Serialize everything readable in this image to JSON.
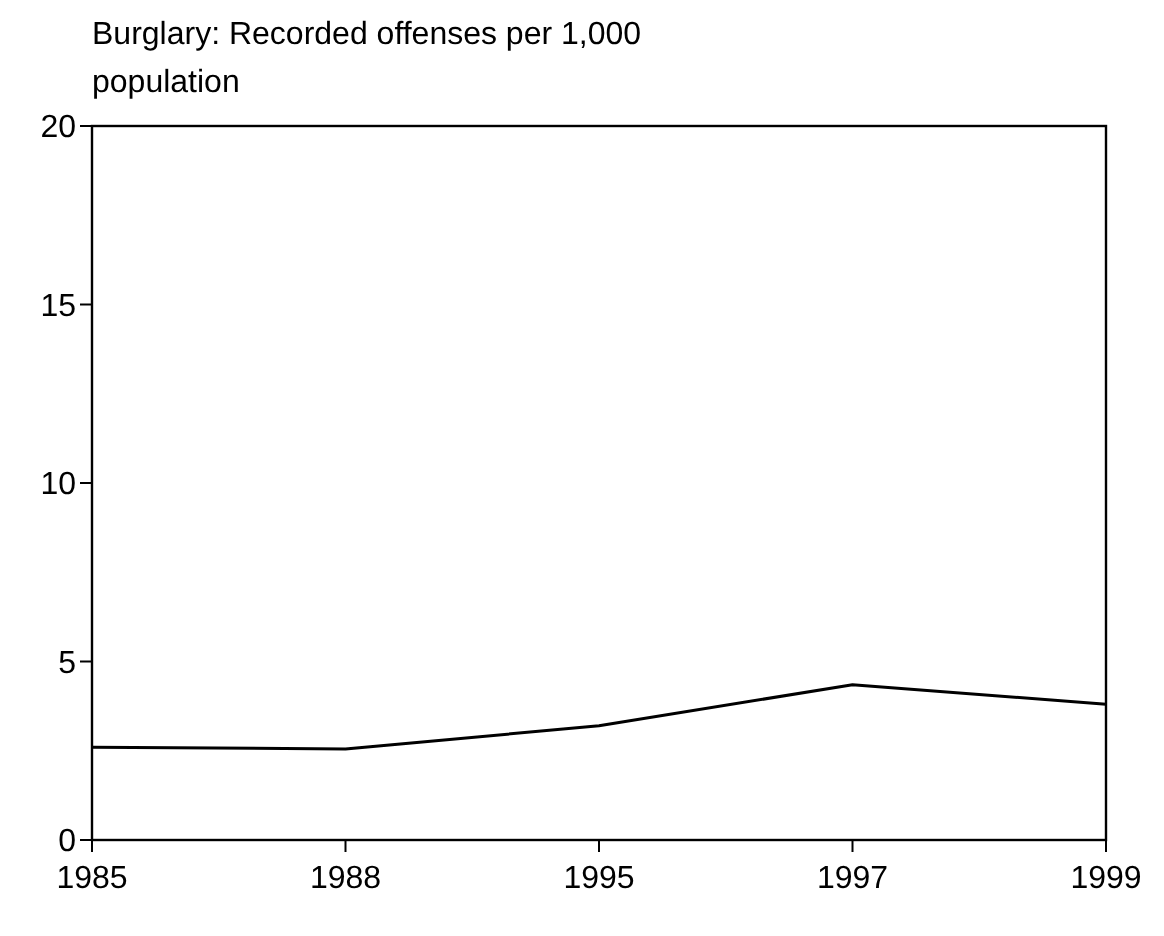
{
  "chart_data": {
    "type": "line",
    "title": "Burglary: Recorded offenses per 1,000 population",
    "categories": [
      "1985",
      "1988",
      "1995",
      "1997",
      "1999"
    ],
    "series": [
      {
        "color": "#000000",
        "values": [
          2.6,
          2.55,
          3.2,
          4.35,
          3.8
        ]
      }
    ],
    "ylim": [
      0,
      20
    ],
    "yticks": [
      0,
      5,
      10,
      15,
      20
    ],
    "grid": false,
    "marker": "none",
    "line_style": "solid"
  }
}
